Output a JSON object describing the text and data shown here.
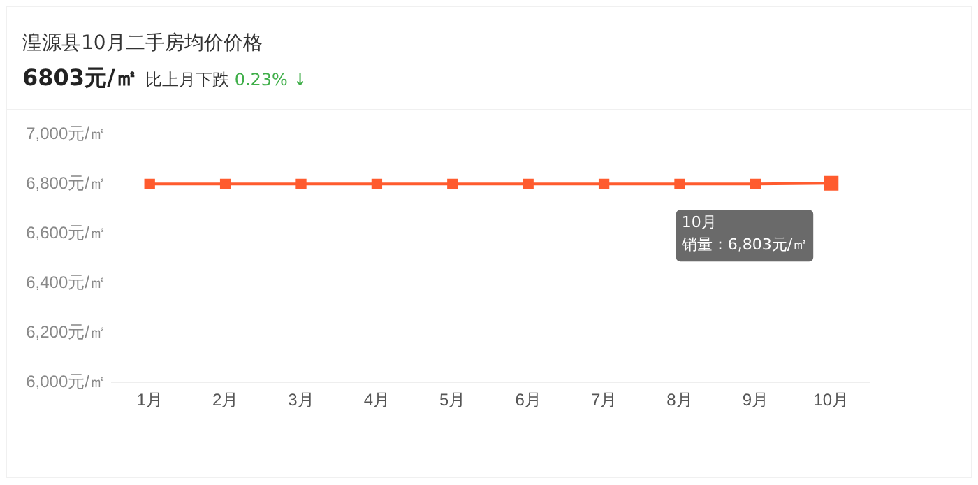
{
  "chart_data": {
    "type": "line",
    "title": "湟源县10月二手房均价价格",
    "subtitle": "6803元/㎡",
    "annotations": [
      "比上月下跌",
      "0.23% ↓",
      "10月",
      "销量：6,803元/㎡"
    ],
    "categories": [
      "1月",
      "2月",
      "3月",
      "4月",
      "5月",
      "6月",
      "7月",
      "8月",
      "9月",
      "10月"
    ],
    "series": [
      {
        "color": "#ff5b2e",
        "values": [
          6800,
          6800,
          6800,
          6800,
          6800,
          6800,
          6800,
          6800,
          6800,
          6803
        ]
      }
    ],
    "ylim": [
      6000,
      7000
    ],
    "yticks": [
      {
        "value": 6000,
        "label": "6,000元/㎡"
      },
      {
        "value": 6200,
        "label": "6,200元/㎡"
      },
      {
        "value": 6400,
        "label": "6,400元/㎡"
      },
      {
        "value": 6600,
        "label": "6,600元/㎡"
      },
      {
        "value": 6800,
        "label": "6,800元/㎡"
      },
      {
        "value": 7000,
        "label": "7,000元/㎡"
      }
    ],
    "grid": false,
    "legend": false,
    "marker": "square"
  }
}
